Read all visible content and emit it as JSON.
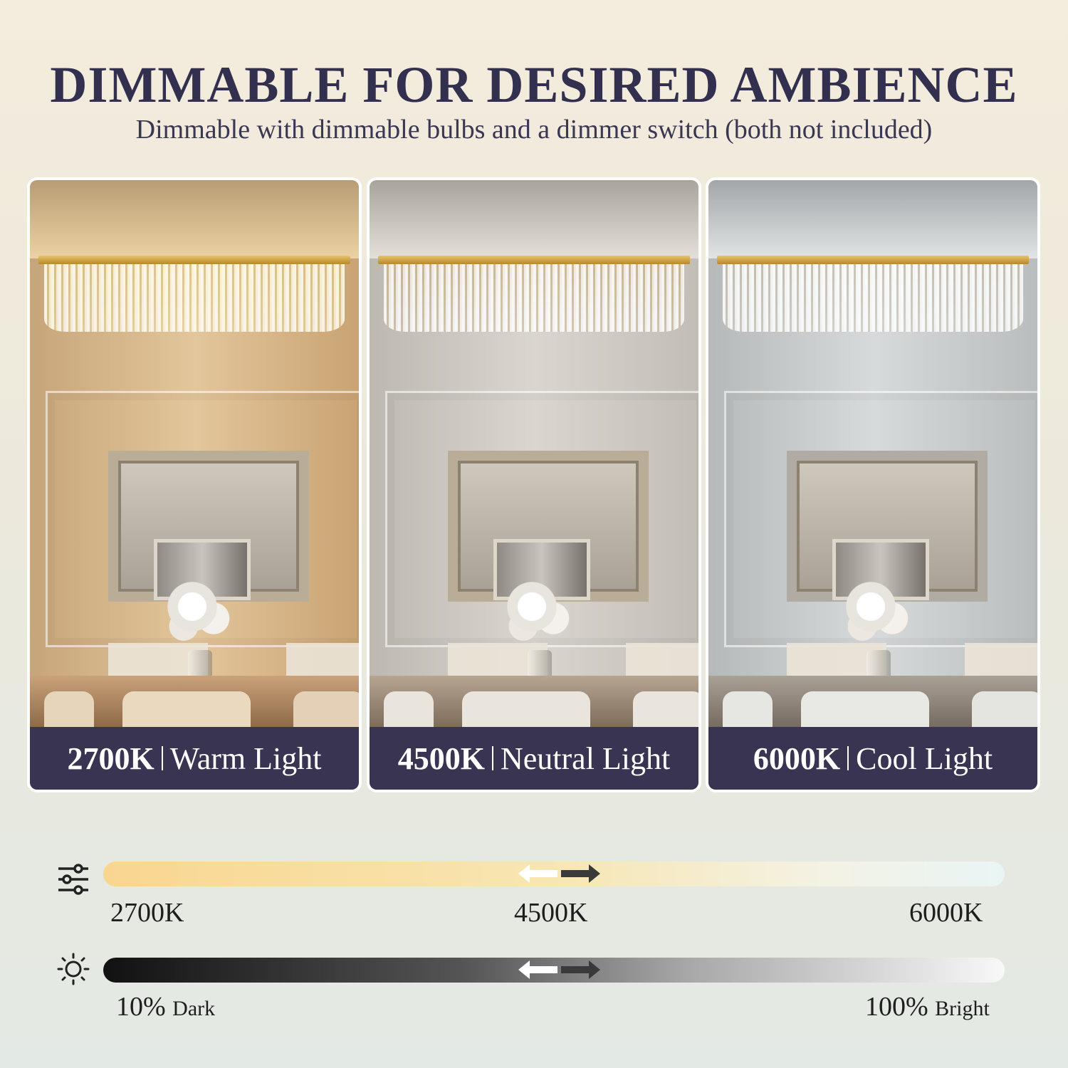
{
  "header": {
    "title": "DIMMABLE FOR DESIRED AMBIENCE",
    "subtitle": "Dimmable with dimmable bulbs and a dimmer switch (both not included)"
  },
  "panels": [
    {
      "kelvin": "2700K",
      "name": "Warm Light",
      "tint": "#e9c88e",
      "wall": "#d9b98a"
    },
    {
      "kelvin": "4500K",
      "name": "Neutral Light",
      "tint": "#e4e0d8",
      "wall": "#cfcac1"
    },
    {
      "kelvin": "6000K",
      "name": "Cool Light",
      "tint": "#dfe3e4",
      "wall": "#c8cbcb"
    }
  ],
  "color_scale": {
    "icon": "sliders-icon",
    "start": "2700K",
    "mid": "4500K",
    "end": "6000K"
  },
  "brightness_scale": {
    "icon": "sun-icon",
    "start_value": "10%",
    "start_label": "Dark",
    "end_value": "100%",
    "end_label": "Bright"
  }
}
